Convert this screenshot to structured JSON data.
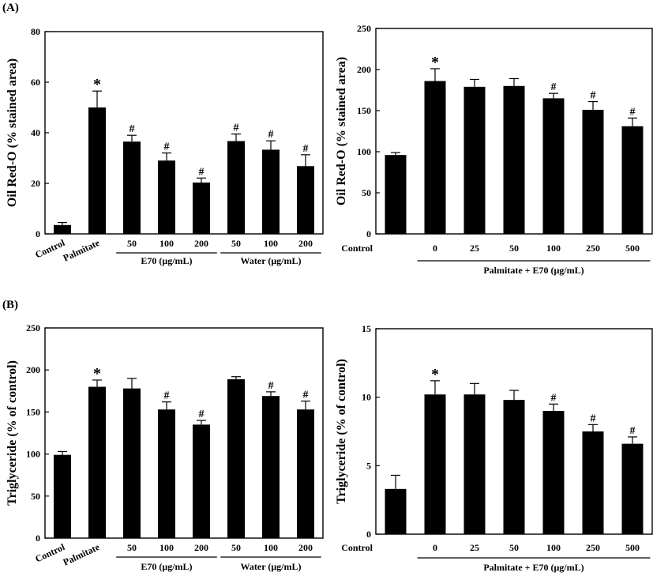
{
  "panel_labels": [
    "(A)",
    "(B)"
  ],
  "chart_data": [
    {
      "type": "bar",
      "panel": "(A)",
      "ylabel": "Oil Red-O (% stained area)",
      "ylim": [
        0,
        80
      ],
      "yticks": [
        "0",
        "20",
        "40",
        "60",
        "80"
      ],
      "categories": [
        "Control",
        "Palmitate",
        "50",
        "100",
        "200",
        "50",
        "100",
        "200"
      ],
      "values": [
        3.5,
        50,
        36.5,
        29,
        20.3,
        36.7,
        33.3,
        26.8
      ],
      "errors": [
        1.0,
        6.5,
        2.5,
        3.0,
        1.8,
        2.8,
        3.5,
        4.5
      ],
      "significance": [
        "",
        "*",
        "#",
        "#",
        "#",
        "#",
        "#",
        "#"
      ],
      "groups": [
        {
          "label": "E70 (μg/mL)",
          "start": 2,
          "end": 4
        },
        {
          "label": "Water (μg/mL)",
          "start": 5,
          "end": 7
        }
      ]
    },
    {
      "type": "bar",
      "panel": "(A)",
      "ylabel": "Oil Red-O (% stained area)",
      "ylim": [
        0,
        250
      ],
      "yticks": [
        "0",
        "50",
        "100",
        "150",
        "200",
        "250"
      ],
      "categories": [
        "Control",
        "0",
        "25",
        "50",
        "100",
        "250",
        "500"
      ],
      "values": [
        96,
        186,
        179,
        180,
        165,
        151,
        131
      ],
      "errors": [
        3,
        15,
        9,
        9,
        6,
        10,
        10
      ],
      "significance": [
        "",
        "*",
        "",
        "",
        "#",
        "#",
        "#"
      ],
      "groups": [
        {
          "label": "Palmitate + E70 (μg/mL)",
          "start": 1,
          "end": 6
        }
      ]
    },
    {
      "type": "bar",
      "panel": "(B)",
      "ylabel": "Triglyceride (% of control)",
      "ylim": [
        0,
        250
      ],
      "yticks": [
        "0",
        "50",
        "100",
        "150",
        "200",
        "250"
      ],
      "categories": [
        "Control",
        "Palmitate",
        "50",
        "100",
        "200",
        "50",
        "100",
        "200"
      ],
      "values": [
        99,
        180,
        178,
        153,
        135,
        189,
        169,
        153
      ],
      "errors": [
        4,
        8,
        12,
        9,
        5,
        3,
        5,
        10
      ],
      "significance": [
        "",
        "*",
        "",
        "#",
        "#",
        "",
        "#",
        "#"
      ],
      "groups": [
        {
          "label": "E70 (μg/mL)",
          "start": 2,
          "end": 4
        },
        {
          "label": "Water (μg/mL)",
          "start": 5,
          "end": 7
        }
      ]
    },
    {
      "type": "bar",
      "panel": "(B)",
      "ylabel": "Triglyceride (% of control)",
      "ylim": [
        0,
        15
      ],
      "yticks": [
        "0",
        "5",
        "10",
        "15"
      ],
      "categories": [
        "Control",
        "0",
        "25",
        "50",
        "100",
        "250",
        "500"
      ],
      "values": [
        3.3,
        10.2,
        10.2,
        9.8,
        9.0,
        7.5,
        6.6
      ],
      "errors": [
        1.0,
        1.0,
        0.8,
        0.7,
        0.5,
        0.5,
        0.5
      ],
      "significance": [
        "",
        "*",
        "",
        "",
        "#",
        "#",
        "#"
      ],
      "groups": [
        {
          "label": "Palmitate + E70 (μg/mL)",
          "start": 1,
          "end": 6
        }
      ]
    }
  ]
}
